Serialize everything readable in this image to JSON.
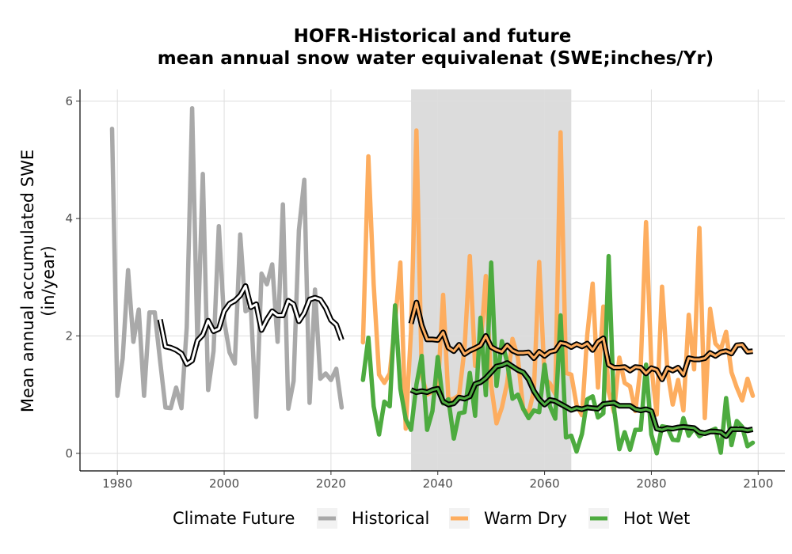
{
  "chart_data": {
    "type": "line",
    "title_lines": [
      "HOFR-Historical and future",
      "mean annual snow water equivalenat (SWE;inches/Yr)"
    ],
    "xlabel": "",
    "ylabel_lines": [
      "Mean annual accumulated SWE",
      "(in/year)"
    ],
    "xlim": [
      1973,
      2105
    ],
    "ylim": [
      -0.3,
      6.2
    ],
    "x_ticks": [
      1980,
      2000,
      2020,
      2040,
      2060,
      2080,
      2100
    ],
    "y_ticks": [
      0,
      2,
      4,
      6
    ],
    "grid": true,
    "shaded_period": [
      2035,
      2065
    ],
    "legend": {
      "title": "Climate Future",
      "position": "bottom",
      "entries": [
        "Historical",
        "Warm Dry",
        "Hot Wet"
      ]
    },
    "colors": {
      "Historical": "#a9a9a9",
      "Warm Dry": "#fdad5f",
      "Hot Wet": "#4dab3f",
      "rolling_mean": "#000000",
      "shade": "#dcdcdc"
    },
    "series": [
      {
        "name": "Historical",
        "x": [
          1979,
          1980,
          1981,
          1982,
          1983,
          1984,
          1985,
          1986,
          1987,
          1988,
          1989,
          1990,
          1991,
          1992,
          1993,
          1994,
          1995,
          1996,
          1997,
          1998,
          1999,
          2000,
          2001,
          2002,
          2003,
          2004,
          2005,
          2006,
          2007,
          2008,
          2009,
          2010,
          2011,
          2012,
          2013,
          2014,
          2015,
          2016,
          2017,
          2018,
          2019,
          2020,
          2021,
          2022
        ],
        "values": [
          5.53,
          0.98,
          1.62,
          3.12,
          1.9,
          2.45,
          0.98,
          2.4,
          2.4,
          1.58,
          0.78,
          0.77,
          1.12,
          0.77,
          2.15,
          5.88,
          1.85,
          4.76,
          1.08,
          1.74,
          3.87,
          2.26,
          1.72,
          1.53,
          3.73,
          2.42,
          2.48,
          0.62,
          3.06,
          2.88,
          3.22,
          1.9,
          4.24,
          0.76,
          1.23,
          3.8,
          4.66,
          0.86,
          2.79,
          1.27,
          1.36,
          1.25,
          1.44,
          0.78
        ],
        "rolling_x": [
          1988,
          1989,
          1990,
          1991,
          1992,
          1993,
          1994,
          1995,
          1996,
          1997,
          1998,
          1999,
          2000,
          2001,
          2002,
          2003,
          2004,
          2005,
          2006,
          2007,
          2008,
          2009,
          2010,
          2011,
          2012,
          2013,
          2014,
          2015,
          2016,
          2017,
          2018,
          2019,
          2020,
          2021,
          2022
        ],
        "rolling_values": [
          2.28,
          1.82,
          1.8,
          1.76,
          1.7,
          1.52,
          1.58,
          1.92,
          2.02,
          2.26,
          2.08,
          2.12,
          2.42,
          2.55,
          2.6,
          2.69,
          2.85,
          2.49,
          2.54,
          2.1,
          2.28,
          2.42,
          2.35,
          2.35,
          2.6,
          2.54,
          2.25,
          2.39,
          2.62,
          2.65,
          2.62,
          2.48,
          2.27,
          2.19,
          1.93
        ]
      },
      {
        "name": "Warm Dry",
        "x": [
          2026,
          2027,
          2028,
          2029,
          2030,
          2031,
          2032,
          2033,
          2034,
          2035,
          2036,
          2037,
          2038,
          2039,
          2040,
          2041,
          2042,
          2043,
          2044,
          2045,
          2046,
          2047,
          2048,
          2049,
          2050,
          2051,
          2052,
          2053,
          2054,
          2055,
          2056,
          2057,
          2058,
          2059,
          2060,
          2061,
          2062,
          2063,
          2064,
          2065,
          2066,
          2067,
          2068,
          2069,
          2070,
          2071,
          2072,
          2073,
          2074,
          2075,
          2076,
          2077,
          2078,
          2079,
          2080,
          2081,
          2082,
          2083,
          2084,
          2085,
          2086,
          2087,
          2088,
          2089,
          2090,
          2091,
          2092,
          2093,
          2094,
          2095,
          2096,
          2097,
          2098,
          2099
        ],
        "values": [
          1.89,
          5.06,
          2.88,
          1.34,
          1.2,
          1.36,
          2.22,
          3.25,
          0.42,
          2.1,
          5.5,
          1.32,
          1.0,
          1.05,
          1.06,
          2.7,
          0.91,
          0.93,
          0.99,
          1.78,
          3.36,
          1.49,
          1.78,
          3.02,
          1.15,
          0.51,
          0.78,
          1.2,
          1.95,
          1.63,
          0.75,
          0.68,
          1.07,
          3.26,
          1.27,
          1.19,
          1.01,
          5.47,
          1.37,
          1.34,
          0.82,
          0.65,
          2.02,
          2.89,
          1.12,
          2.5,
          1.05,
          0.7,
          1.63,
          1.2,
          1.14,
          0.72,
          1.48,
          3.94,
          1.49,
          0.66,
          2.84,
          1.4,
          0.83,
          1.25,
          0.73,
          2.36,
          1.43,
          3.84,
          0.6,
          2.46,
          1.87,
          1.77,
          2.07,
          1.38,
          1.12,
          0.9,
          1.27,
          0.98
        ],
        "rolling_x": [
          2035,
          2036,
          2037,
          2038,
          2039,
          2040,
          2041,
          2042,
          2043,
          2044,
          2045,
          2046,
          2047,
          2048,
          2049,
          2050,
          2051,
          2052,
          2053,
          2054,
          2055,
          2056,
          2057,
          2058,
          2059,
          2060,
          2061,
          2062,
          2063,
          2064,
          2065,
          2066,
          2067,
          2068,
          2069,
          2070,
          2071,
          2072,
          2073,
          2074,
          2075,
          2076,
          2077,
          2078,
          2079,
          2080,
          2081,
          2082,
          2083,
          2084,
          2085,
          2086,
          2087,
          2088,
          2089,
          2090,
          2091,
          2092,
          2093,
          2094,
          2095,
          2096,
          2097,
          2098,
          2099
        ],
        "rolling_values": [
          2.21,
          2.57,
          2.18,
          1.94,
          1.94,
          1.93,
          2.06,
          1.8,
          1.74,
          1.85,
          1.69,
          1.75,
          1.79,
          1.84,
          2.0,
          1.81,
          1.76,
          1.73,
          1.84,
          1.75,
          1.71,
          1.71,
          1.72,
          1.62,
          1.73,
          1.66,
          1.73,
          1.75,
          1.88,
          1.86,
          1.81,
          1.86,
          1.82,
          1.87,
          1.76,
          1.9,
          1.96,
          1.51,
          1.46,
          1.46,
          1.47,
          1.41,
          1.47,
          1.46,
          1.36,
          1.45,
          1.42,
          1.26,
          1.45,
          1.41,
          1.46,
          1.34,
          1.62,
          1.6,
          1.6,
          1.62,
          1.71,
          1.66,
          1.72,
          1.74,
          1.7,
          1.84,
          1.85,
          1.73,
          1.74
        ]
      },
      {
        "name": "Hot Wet",
        "x": [
          2026,
          2027,
          2028,
          2029,
          2030,
          2031,
          2032,
          2033,
          2034,
          2035,
          2036,
          2037,
          2038,
          2039,
          2040,
          2041,
          2042,
          2043,
          2044,
          2045,
          2046,
          2047,
          2048,
          2049,
          2050,
          2051,
          2052,
          2053,
          2054,
          2055,
          2056,
          2057,
          2058,
          2059,
          2060,
          2061,
          2062,
          2063,
          2064,
          2065,
          2066,
          2067,
          2068,
          2069,
          2070,
          2071,
          2072,
          2073,
          2074,
          2075,
          2076,
          2077,
          2078,
          2079,
          2080,
          2081,
          2082,
          2083,
          2084,
          2085,
          2086,
          2087,
          2088,
          2089,
          2090,
          2091,
          2092,
          2093,
          2094,
          2095,
          2096,
          2097,
          2098,
          2099
        ],
        "values": [
          1.25,
          1.97,
          0.8,
          0.32,
          0.88,
          0.8,
          2.52,
          1.1,
          0.58,
          0.4,
          1.17,
          1.66,
          0.4,
          0.72,
          1.64,
          0.85,
          0.92,
          0.25,
          0.68,
          0.7,
          1.37,
          0.64,
          2.31,
          0.99,
          3.25,
          1.15,
          1.91,
          1.55,
          0.93,
          1.0,
          0.76,
          0.6,
          0.73,
          0.7,
          1.51,
          0.8,
          0.59,
          2.35,
          0.27,
          0.3,
          0.03,
          0.33,
          0.92,
          0.97,
          0.61,
          0.68,
          3.36,
          0.77,
          0.07,
          0.36,
          0.06,
          0.4,
          0.4,
          1.51,
          0.32,
          0.0,
          0.46,
          0.44,
          0.23,
          0.22,
          0.6,
          0.3,
          0.43,
          0.29,
          0.35,
          0.38,
          0.42,
          0.01,
          0.94,
          0.14,
          0.55,
          0.45,
          0.12,
          0.18
        ],
        "rolling_x": [
          2035,
          2036,
          2037,
          2038,
          2039,
          2040,
          2041,
          2042,
          2043,
          2044,
          2045,
          2046,
          2047,
          2048,
          2049,
          2050,
          2051,
          2052,
          2053,
          2054,
          2055,
          2056,
          2057,
          2058,
          2059,
          2060,
          2061,
          2062,
          2063,
          2064,
          2065,
          2066,
          2067,
          2068,
          2069,
          2070,
          2071,
          2072,
          2073,
          2074,
          2075,
          2076,
          2077,
          2078,
          2079,
          2080,
          2081,
          2082,
          2083,
          2084,
          2085,
          2086,
          2087,
          2088,
          2089,
          2090,
          2091,
          2092,
          2093,
          2094,
          2095,
          2096,
          2097,
          2098,
          2099
        ],
        "rolling_values": [
          1.08,
          1.04,
          1.06,
          1.04,
          1.08,
          1.1,
          0.88,
          0.83,
          0.85,
          0.95,
          0.93,
          0.97,
          1.18,
          1.21,
          1.28,
          1.38,
          1.48,
          1.5,
          1.54,
          1.48,
          1.42,
          1.38,
          1.26,
          1.06,
          0.92,
          0.83,
          0.91,
          0.89,
          0.84,
          0.79,
          0.74,
          0.77,
          0.75,
          0.78,
          0.77,
          0.76,
          0.84,
          0.85,
          0.86,
          0.81,
          0.81,
          0.81,
          0.75,
          0.73,
          0.75,
          0.72,
          0.42,
          0.4,
          0.43,
          0.42,
          0.44,
          0.45,
          0.44,
          0.43,
          0.36,
          0.34,
          0.37,
          0.37,
          0.36,
          0.29,
          0.41,
          0.41,
          0.41,
          0.39,
          0.41
        ]
      }
    ]
  }
}
